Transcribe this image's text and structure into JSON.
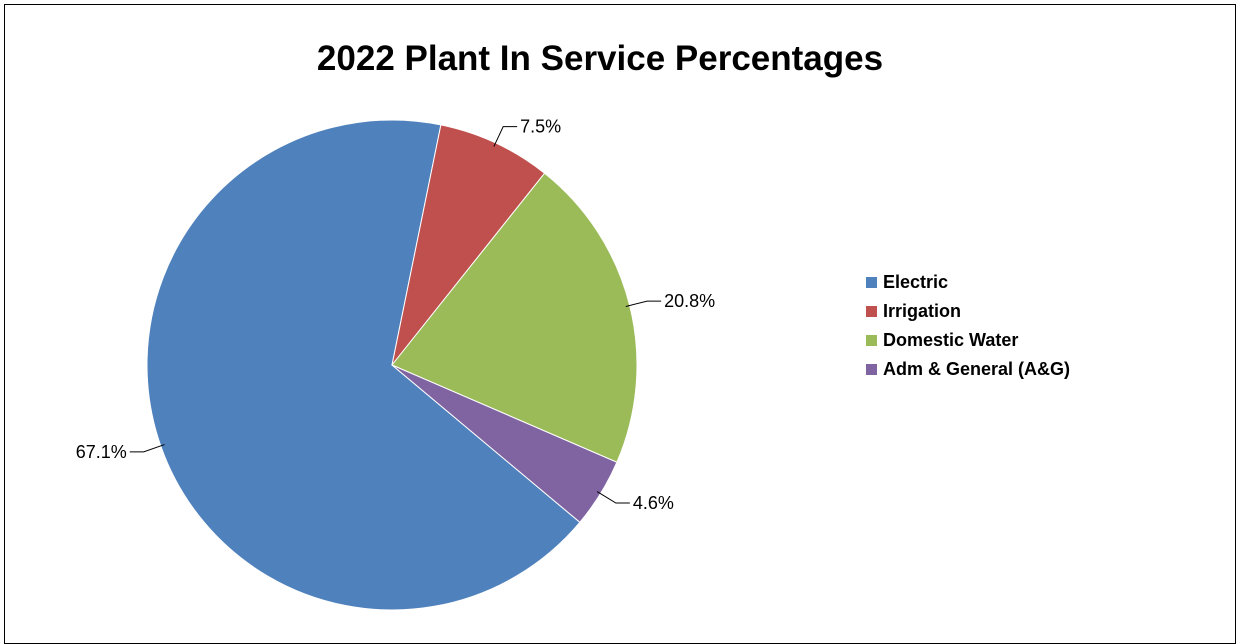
{
  "chart_data": {
    "type": "pie",
    "title": "2022 Plant In Service Percentages",
    "slices": [
      {
        "name": "Electric",
        "value": 67.1,
        "label": "67.1%",
        "color": "#4F81BD"
      },
      {
        "name": "Irrigation",
        "value": 7.5,
        "label": "7.5%",
        "color": "#C0504D"
      },
      {
        "name": "Domestic Water",
        "value": 20.8,
        "label": "20.8%",
        "color": "#9BBB59"
      },
      {
        "name": "Adm & General (A&G)",
        "value": 4.6,
        "label": "4.6%",
        "color": "#8064A2"
      }
    ],
    "legend_position": "right"
  }
}
